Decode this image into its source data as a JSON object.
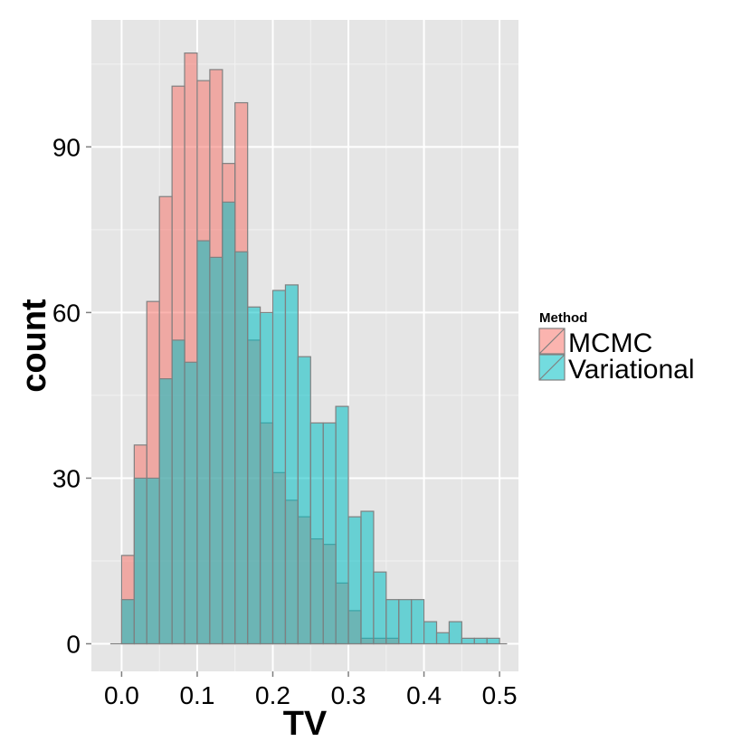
{
  "chart_data": {
    "type": "bar",
    "subtype": "overlaid histogram",
    "xlabel": "TV",
    "ylabel": "count",
    "xlim": [
      -0.04,
      0.525
    ],
    "ylim": [
      -5,
      113
    ],
    "x_ticks": [
      "0.0",
      "0.1",
      "0.2",
      "0.3",
      "0.4",
      "0.5"
    ],
    "x_tick_values": [
      0.0,
      0.1,
      0.2,
      0.3,
      0.4,
      0.5
    ],
    "y_ticks": [
      "0",
      "30",
      "60",
      "90"
    ],
    "y_tick_values": [
      0,
      30,
      60,
      90
    ],
    "grid": true,
    "legend_position": "right",
    "legend_title": "Method",
    "bin_width": 0.0167,
    "bin_starts": [
      0.0,
      0.0167,
      0.0333,
      0.05,
      0.0667,
      0.0833,
      0.1,
      0.1167,
      0.1333,
      0.15,
      0.1667,
      0.1833,
      0.2,
      0.2167,
      0.2333,
      0.25,
      0.2667,
      0.2833,
      0.3,
      0.3167,
      0.3333,
      0.35,
      0.3667,
      0.3833,
      0.4,
      0.4167,
      0.4333,
      0.45,
      0.4667,
      0.4833
    ],
    "series": [
      {
        "name": "MCMC",
        "color": "#F8766D",
        "values": [
          16,
          36,
          62,
          81,
          101,
          107,
          102,
          104,
          87,
          98,
          55,
          40,
          31,
          26,
          23,
          19,
          18,
          11,
          6,
          1,
          1,
          1,
          0,
          0,
          0,
          0,
          0,
          0,
          0,
          0
        ]
      },
      {
        "name": "Variational",
        "color": "#00BFC4",
        "values": [
          8,
          30,
          30,
          48,
          55,
          51,
          73,
          70,
          80,
          71,
          61,
          60,
          64,
          65,
          52,
          40,
          40,
          43,
          23,
          24,
          13,
          8,
          8,
          8,
          4,
          2,
          4,
          1,
          1,
          1
        ]
      }
    ]
  },
  "colors": {
    "panel_background": "#E5E5E5",
    "grid_major": "#FFFFFF",
    "grid_minor": "#F2F2F2",
    "bar_outline": "#808080"
  }
}
